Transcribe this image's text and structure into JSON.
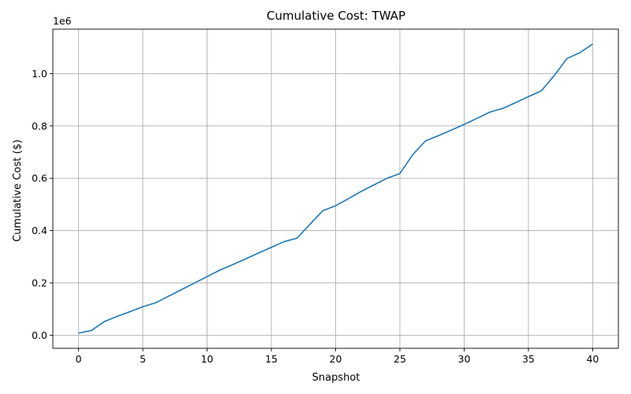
{
  "chart_data": {
    "type": "line",
    "title": "Cumulative Cost: TWAP",
    "xlabel": "Snapshot",
    "ylabel": "Cumulative Cost ($)",
    "y_offset_label": "1e6",
    "xlim": [
      -2,
      42
    ],
    "ylim": [
      -0.05,
      1.17
    ],
    "x_ticks": [
      0,
      5,
      10,
      15,
      20,
      25,
      30,
      35,
      40
    ],
    "y_ticks": [
      0.0,
      0.2,
      0.4,
      0.6,
      0.8,
      1.0
    ],
    "grid": true,
    "colors": {
      "line": "#1f77b4"
    },
    "series": [
      {
        "x": [
          0,
          1,
          2,
          3,
          4,
          5,
          6,
          7,
          8,
          9,
          10,
          11,
          12,
          13,
          14,
          15,
          16,
          17,
          18,
          19,
          20,
          21,
          22,
          23,
          24,
          25,
          26,
          27,
          28,
          29,
          30,
          31,
          32,
          33,
          34,
          35,
          36,
          37,
          38,
          39,
          40
        ],
        "values": [
          0.008,
          0.018,
          0.052,
          0.072,
          0.09,
          0.109,
          0.124,
          0.149,
          0.174,
          0.199,
          0.224,
          0.249,
          0.27,
          0.292,
          0.314,
          0.336,
          0.358,
          0.371,
          0.424,
          0.476,
          0.495,
          0.522,
          0.55,
          0.575,
          0.6,
          0.618,
          0.69,
          0.743,
          0.763,
          0.784,
          0.806,
          0.829,
          0.853,
          0.867,
          0.889,
          0.912,
          0.934,
          0.992,
          1.058,
          1.08,
          1.113
        ]
      }
    ]
  }
}
